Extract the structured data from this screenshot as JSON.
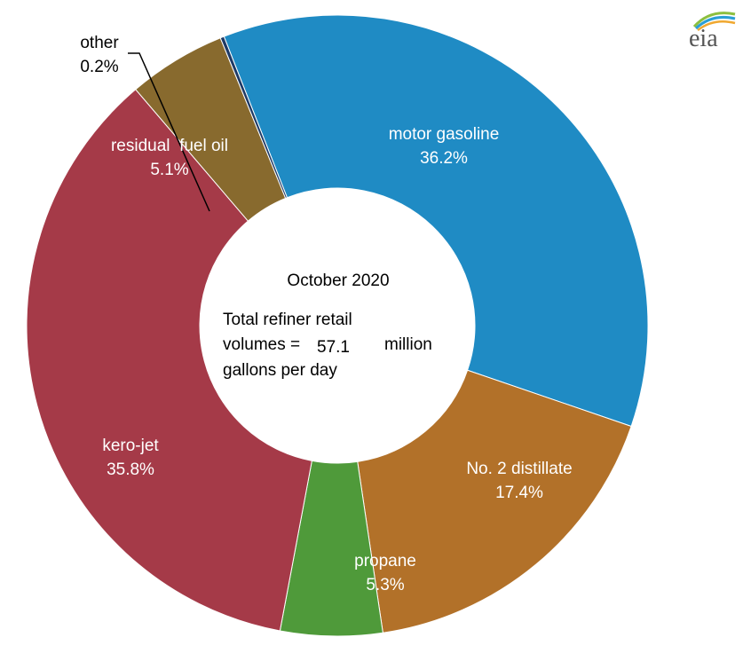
{
  "chart_data": {
    "type": "pie",
    "donut": true,
    "slices": [
      {
        "label": "motor gasoline",
        "pct_label": "36.2%",
        "value": 36.2,
        "color": "#1f8bc4",
        "text_color": "#ffffff"
      },
      {
        "label": "No. 2 distillate",
        "pct_label": "17.4%",
        "value": 17.4,
        "color": "#b27129",
        "text_color": "#ffffff"
      },
      {
        "label": "propane",
        "pct_label": "5.3%",
        "value": 5.3,
        "color": "#4f9a3a",
        "text_color": "#ffffff"
      },
      {
        "label": "kero-jet",
        "pct_label": "35.8%",
        "value": 35.8,
        "color": "#a53a48",
        "text_color": "#ffffff"
      },
      {
        "label": "residual  fuel oil",
        "pct_label": "5.1%",
        "value": 5.1,
        "color": "#886a2e",
        "text_color": "#ffffff"
      },
      {
        "label": "other",
        "pct_label": "0.2%",
        "value": 0.2,
        "color": "#1e3a66",
        "text_color": "#000000"
      }
    ],
    "center": {
      "line1": "October 2020",
      "line2": "Total refiner retail",
      "line3_prefix": "volumes =",
      "line3_value": "57.1",
      "line3_suffix": "million",
      "line4": "gallons  per day"
    }
  },
  "logo": {
    "text": "eia"
  }
}
